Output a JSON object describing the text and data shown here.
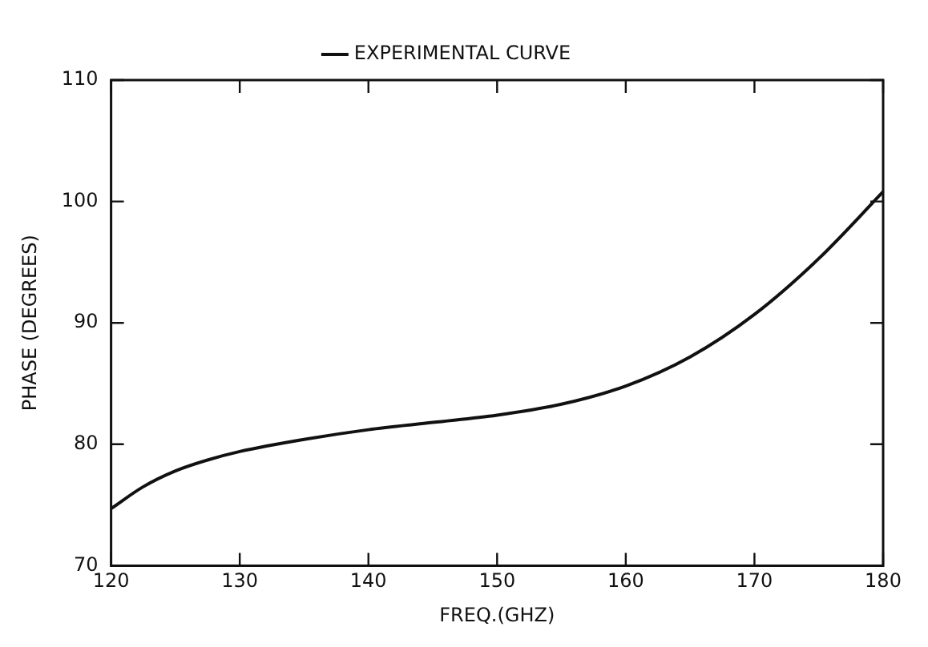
{
  "chart_data": {
    "type": "line",
    "xlabel": "FREQ.(GHZ)",
    "ylabel": "PHASE (DEGREES)",
    "x": [
      120,
      122.5,
      125,
      127.5,
      130,
      135,
      140,
      145,
      150,
      155,
      160,
      165,
      170,
      175,
      180
    ],
    "series": [
      {
        "name": "EXPERIMENTAL CURVE",
        "color": "#111111",
        "values": [
          74.7,
          76.5,
          77.8,
          78.7,
          79.4,
          80.4,
          81.2,
          81.8,
          82.4,
          83.3,
          84.8,
          87.2,
          90.7,
          95.3,
          100.8
        ]
      }
    ],
    "xlim": [
      120,
      180
    ],
    "xticks": [
      120,
      130,
      140,
      150,
      160,
      170,
      180
    ],
    "ylim": [
      70,
      110
    ],
    "yticks": [
      70,
      80,
      90,
      100,
      110
    ],
    "legend": "top",
    "marker": "none",
    "line_style": "solid"
  }
}
